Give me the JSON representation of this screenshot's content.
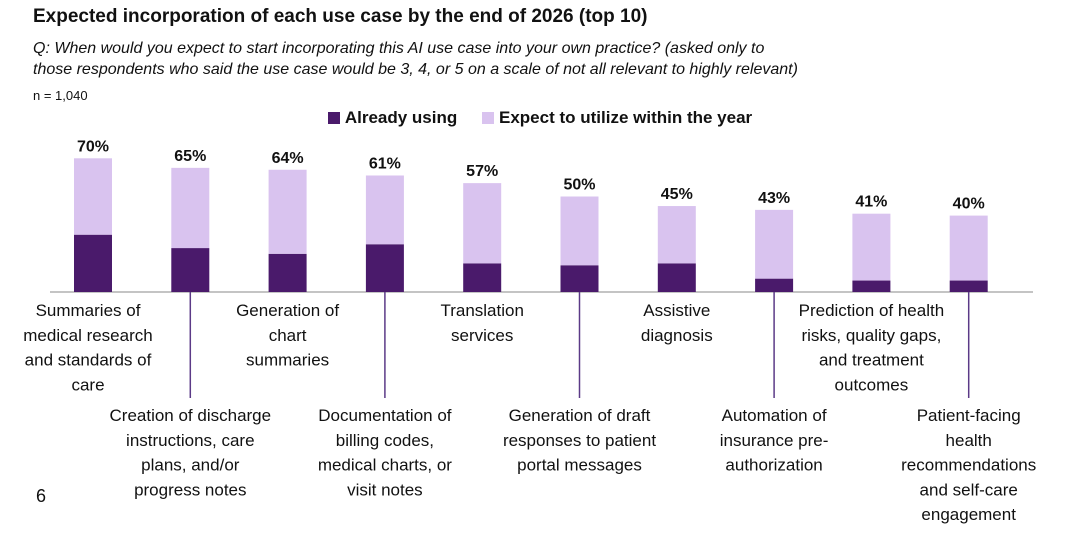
{
  "header": {
    "title": "Expected incorporation of each use case by the end of 2026 (top 10)",
    "subtitle_line1": "Q: When would you expect to start incorporating this AI use case into your own practice? (asked only to",
    "subtitle_line2": "those respondents who said the use case would be 3, 4, or 5 on a scale of not all relevant to highly relevant)",
    "sample_size": "n = 1,040"
  },
  "legend": {
    "already_using": "Already using",
    "expect_within_year": "Expect to utilize within the year"
  },
  "colors": {
    "already_using": "#4a1a6b",
    "expect_within_year": "#d9c3ef",
    "axis": "#b0b0b0",
    "leader": "#5b3a87"
  },
  "page_number": "6",
  "chart_data": {
    "type": "bar",
    "stacked": true,
    "title": "Expected incorporation of each use case by the end of 2026 (top 10)",
    "ylim": [
      0,
      80
    ],
    "categories": [
      "Summaries of medical research and standards of care",
      "Creation of discharge instructions, care plans, and/or progress notes",
      "Generation of chart summaries",
      "Documentation of billing codes, medical charts, or visit notes",
      "Translation services",
      "Generation of draft responses to patient portal messages",
      "Assistive diagnosis",
      "Automation of insurance pre-authorization",
      "Prediction of health risks, quality gaps, and treatment outcomes",
      "Patient-facing health recommendations and self-care engagement"
    ],
    "category_lines": [
      [
        "Summaries of",
        "medical research",
        "and standards of",
        "care"
      ],
      [
        "Creation of discharge",
        "instructions, care",
        "plans, and/or",
        "progress notes"
      ],
      [
        "Generation of",
        "chart",
        "summaries"
      ],
      [
        "Documentation of",
        "billing codes,",
        "medical charts, or",
        "visit notes"
      ],
      [
        "Translation",
        "services"
      ],
      [
        "Generation of draft",
        "responses to patient",
        "portal messages"
      ],
      [
        "Assistive",
        "diagnosis"
      ],
      [
        "Automation of",
        "insurance pre-",
        "authorization"
      ],
      [
        "Prediction of health",
        "risks, quality gaps,",
        "and treatment",
        "outcomes"
      ],
      [
        "Patient-facing",
        "health",
        "recommendations",
        "and self-care",
        "engagement"
      ]
    ],
    "series": [
      {
        "name": "Already using",
        "values": [
          30,
          23,
          20,
          25,
          15,
          14,
          15,
          7,
          6,
          6
        ]
      },
      {
        "name": "Expect to utilize within the year",
        "values": [
          40,
          42,
          44,
          36,
          42,
          36,
          30,
          36,
          35,
          34
        ]
      }
    ],
    "totals": [
      70,
      65,
      64,
      61,
      57,
      50,
      45,
      43,
      41,
      40
    ],
    "total_labels": [
      "70%",
      "65%",
      "64%",
      "61%",
      "57%",
      "50%",
      "45%",
      "43%",
      "41%",
      "40%"
    ]
  }
}
